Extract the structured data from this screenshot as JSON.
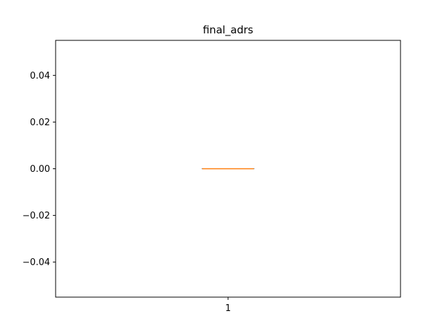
{
  "chart_data": {
    "type": "box",
    "title": "final_adrs",
    "xlabel": "",
    "ylabel": "",
    "categories": [
      "1"
    ],
    "boxes": [
      {
        "category": "1",
        "min": 0.0,
        "q1": 0.0,
        "median": 0.0,
        "q3": 0.0,
        "max": 0.0
      }
    ],
    "ylim": [
      -0.055,
      0.055
    ],
    "yticks": [
      -0.04,
      -0.02,
      0.0,
      0.02,
      0.04
    ],
    "ytick_labels": [
      "−0.04",
      "−0.02",
      "0.00",
      "0.02",
      "0.04"
    ],
    "grid": false,
    "colors": {
      "median": "#ff7f0e",
      "box": "#000000",
      "axes": "#000000"
    }
  }
}
